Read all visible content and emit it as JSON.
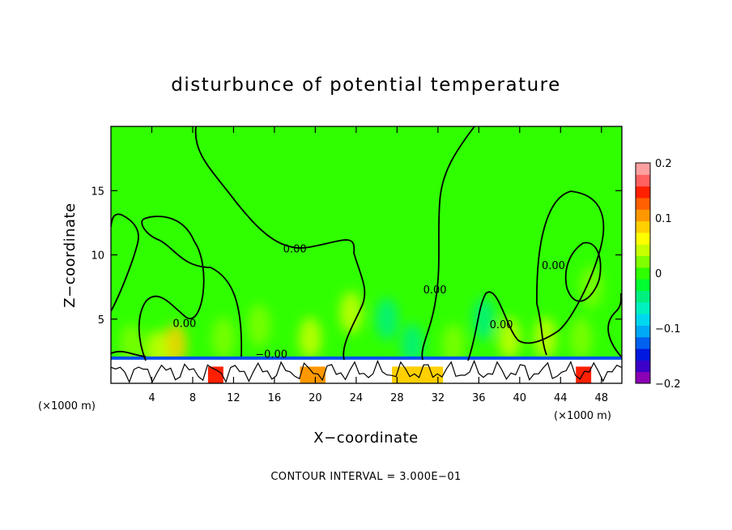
{
  "chart_data": {
    "type": "heatmap",
    "title": "disturbunce of potential temperature",
    "xlabel": "X−coordinate",
    "ylabel": "Z−coordinate",
    "x_unit_left": "(×1000 m)",
    "x_unit_right": "(×1000 m)",
    "footnote": "CONTOUR INTERVAL = 3.000E−01",
    "xlim": [
      0,
      50
    ],
    "ylim": [
      0,
      20
    ],
    "x_ticks": [
      4,
      8,
      12,
      16,
      20,
      24,
      28,
      32,
      36,
      40,
      44,
      48
    ],
    "y_ticks": [
      5,
      10,
      15
    ],
    "colorbar": {
      "range": [
        -0.2,
        0.2
      ],
      "tick_values": [
        0.2,
        0.1,
        0,
        -0.1,
        -0.2
      ],
      "tick_labels": [
        "0.2",
        "0.1",
        "0",
        "−0.1",
        "−0.2"
      ],
      "colors": [
        "#8b00b5",
        "#3c00c8",
        "#0018e0",
        "#0060f0",
        "#00a8f8",
        "#00d8f0",
        "#00f0c0",
        "#00f080",
        "#00ff30",
        "#30ff00",
        "#80ff00",
        "#c8ff00",
        "#ffff00",
        "#ffd000",
        "#ff9800",
        "#ff6000",
        "#ff2000",
        "#ff6060",
        "#ffa0a0"
      ]
    },
    "contour_labels": [
      {
        "text": "0.00",
        "x": 18.0,
        "z": 10.2
      },
      {
        "text": "0.00",
        "x": 31.7,
        "z": 7.0
      },
      {
        "text": "0.00",
        "x": 43.3,
        "z": 8.9
      },
      {
        "text": "0.00",
        "x": 7.2,
        "z": 4.4
      },
      {
        "text": "0.00",
        "x": 38.2,
        "z": 4.3
      },
      {
        "text": "−0.00",
        "x": 15.7,
        "z": 2.0
      }
    ],
    "background_value": 0.0,
    "anomalies": [
      {
        "x": 6.3,
        "z": 3.0,
        "value": 0.09
      },
      {
        "x": 4.5,
        "z": 2.5,
        "value": 0.05
      },
      {
        "x": 11.0,
        "z": 3.5,
        "value": 0.03
      },
      {
        "x": 14.5,
        "z": 4.5,
        "value": 0.03
      },
      {
        "x": 19.5,
        "z": 3.5,
        "value": 0.05
      },
      {
        "x": 23.5,
        "z": 5.5,
        "value": 0.04
      },
      {
        "x": 27.0,
        "z": 5.0,
        "value": -0.05
      },
      {
        "x": 29.5,
        "z": 3.0,
        "value": -0.04
      },
      {
        "x": 36.5,
        "z": 5.0,
        "value": -0.04
      },
      {
        "x": 39.0,
        "z": 3.5,
        "value": 0.04
      },
      {
        "x": 42.5,
        "z": 3.5,
        "value": 0.04
      },
      {
        "x": 46.0,
        "z": 3.5,
        "value": 0.03
      },
      {
        "x": 47.0,
        "z": 7.5,
        "value": 0.03
      },
      {
        "x": 2.0,
        "z": 3.0,
        "value": 0.03
      },
      {
        "x": 33.5,
        "z": 3.0,
        "value": 0.02
      }
    ]
  }
}
